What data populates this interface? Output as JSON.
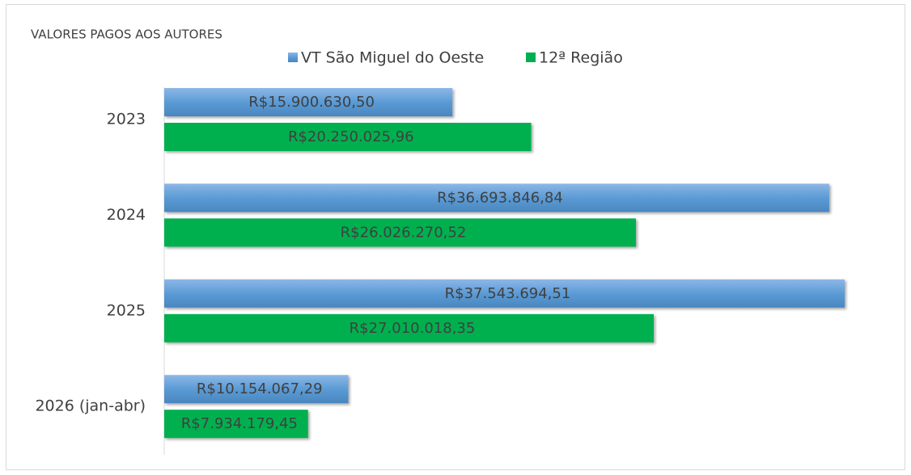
{
  "chart_data": {
    "type": "barh",
    "title": "VALORES PAGOS AOS AUTORES",
    "categories": [
      "2023",
      "2024",
      "2025",
      "2026 (jan-abr)"
    ],
    "series": [
      {
        "name": "VT São Miguel do Oeste",
        "color": "#5b9bd5",
        "values": [
          15900630.5,
          36693846.84,
          37543694.51,
          10154067.29
        ],
        "value_labels": [
          "R$15.900.630,50",
          "R$36.693.846,84",
          "R$37.543.694,51",
          "R$10.154.067,29"
        ]
      },
      {
        "name": "12ª Região",
        "color": "#00b050",
        "values": [
          20250025.96,
          26026270.52,
          27010018.35,
          7934179.45
        ],
        "value_labels": [
          "R$20.250.025,96",
          "R$26.026.270,52",
          "R$27.010.018,35",
          "R$7.934.179,45"
        ]
      }
    ],
    "xlim": [
      0,
      40000000
    ],
    "legend": "top"
  }
}
